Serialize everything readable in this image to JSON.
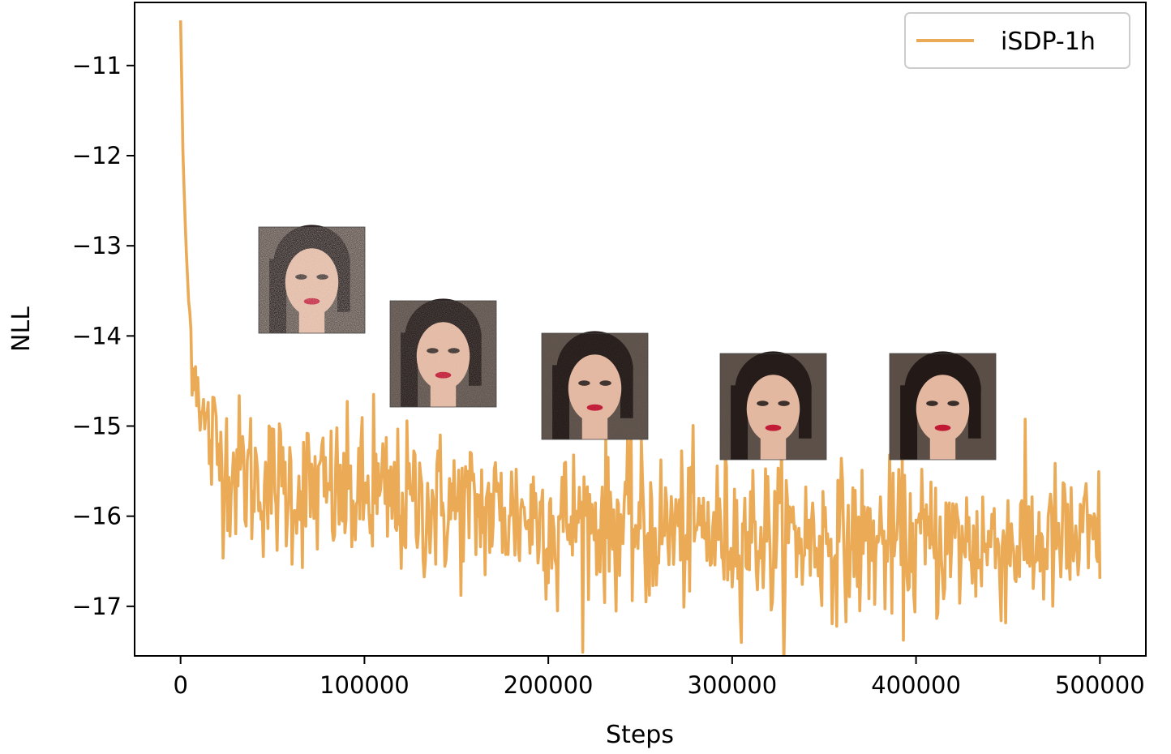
{
  "chart_data": {
    "type": "line",
    "title": "",
    "xlabel": "Steps",
    "ylabel": "NLL",
    "xlim": [
      -25000,
      525000
    ],
    "ylim": [
      -17.55,
      -10.3
    ],
    "xticks": [
      0,
      100000,
      200000,
      300000,
      400000,
      500000
    ],
    "xtick_labels": [
      "0",
      "100000",
      "200000",
      "300000",
      "400000",
      "500000"
    ],
    "yticks": [
      -11,
      -12,
      -13,
      -14,
      -15,
      -16,
      -17
    ],
    "ytick_labels": [
      "−11",
      "−12",
      "−13",
      "−14",
      "−15",
      "−16",
      "−17"
    ],
    "legend": {
      "position": "top-right",
      "entries": [
        "iSDP-1h"
      ]
    },
    "grid": false,
    "series": [
      {
        "name": "iSDP-1h",
        "color": "#ebaa55",
        "anchors": [
          [
            0,
            -10.5
          ],
          [
            1500,
            -12.2
          ],
          [
            3000,
            -13.0
          ],
          [
            4500,
            -13.7
          ],
          [
            6000,
            -14.1
          ],
          [
            8000,
            -14.4
          ],
          [
            10000,
            -14.6
          ],
          [
            12000,
            -14.9
          ],
          [
            15000,
            -15.1
          ],
          [
            20000,
            -15.3
          ],
          [
            30000,
            -15.5
          ],
          [
            50000,
            -15.65
          ],
          [
            80000,
            -15.75
          ],
          [
            120000,
            -15.85
          ],
          [
            170000,
            -15.95
          ],
          [
            220000,
            -16.05
          ],
          [
            270000,
            -16.15
          ],
          [
            320000,
            -16.2
          ],
          [
            370000,
            -16.3
          ],
          [
            420000,
            -16.3
          ],
          [
            460000,
            -16.3
          ],
          [
            500000,
            -16.3
          ]
        ],
        "noise_sd": 0.42,
        "n_points": 800,
        "spikes": [
          [
            105000,
            -14.65
          ],
          [
            205000,
            -17.05
          ],
          [
            357000,
            -17.22
          ],
          [
            253000,
            -16.95
          ],
          [
            322000,
            -16.95
          ]
        ]
      }
    ],
    "inset_images": [
      {
        "label": "sample at early training (noisy)",
        "noise": 0.9
      },
      {
        "label": "sample at ~150k steps",
        "noise": 0.45
      },
      {
        "label": "sample at ~225k steps",
        "noise": 0.15
      },
      {
        "label": "sample at ~320k steps",
        "noise": 0.05
      },
      {
        "label": "sample at ~410k steps",
        "noise": 0.0
      }
    ]
  }
}
